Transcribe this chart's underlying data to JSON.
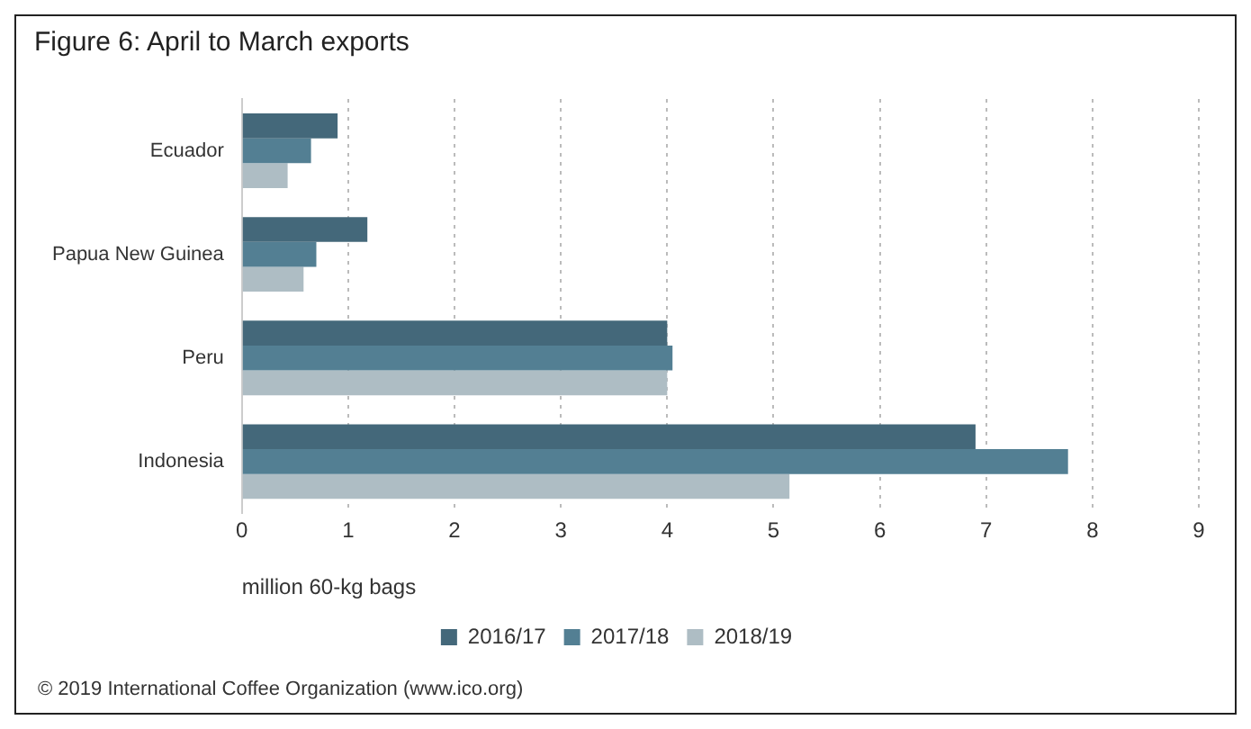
{
  "chart_data": {
    "type": "bar",
    "orientation": "horizontal",
    "title": "Figure 6: April to March exports",
    "xlabel": "million 60-kg bags",
    "categories": [
      "Ecuador",
      "Papua New Guinea",
      "Peru",
      "Indonesia"
    ],
    "series": [
      {
        "name": "2016/17",
        "color": "#44687a",
        "values": [
          0.9,
          1.18,
          4.0,
          6.9
        ]
      },
      {
        "name": "2017/18",
        "color": "#537f93",
        "values": [
          0.65,
          0.7,
          4.05,
          7.77
        ]
      },
      {
        "name": "2018/19",
        "color": "#aebdc4",
        "values": [
          0.43,
          0.58,
          4.0,
          5.15
        ]
      }
    ],
    "xlim": [
      0,
      9
    ],
    "xticks": [
      0,
      1,
      2,
      3,
      4,
      5,
      6,
      7,
      8,
      9
    ],
    "grid": "x",
    "legend": "bottom",
    "annotations": [
      "© 2019 International Coffee Organization (www.ico.org)"
    ]
  }
}
